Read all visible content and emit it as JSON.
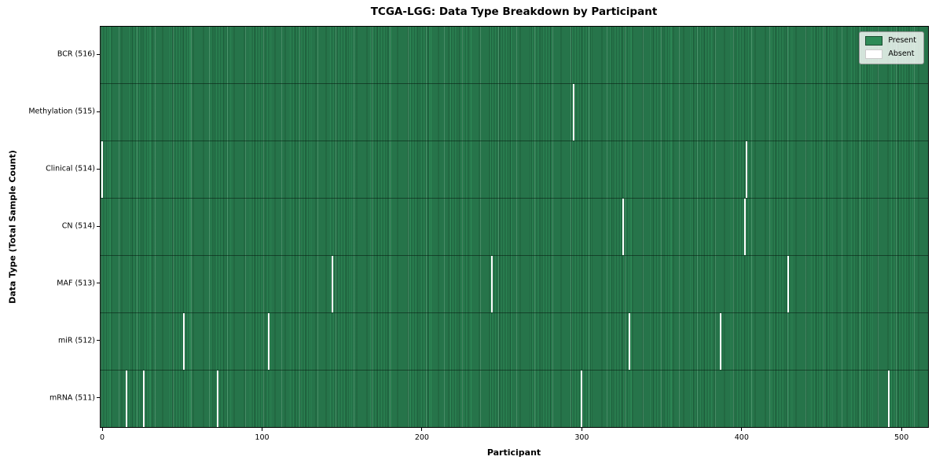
{
  "chart_data": {
    "type": "heatmap",
    "title": "TCGA-LGG: Data Type Breakdown by Participant",
    "xlabel": "Participant",
    "ylabel": "Data Type (Total Sample Count)",
    "x_ticks": [
      0,
      100,
      200,
      300,
      400,
      500
    ],
    "x_range": [
      -1,
      516.6
    ],
    "n_participants": 516,
    "grid": false,
    "legend": {
      "position": "upper right",
      "items": [
        {
          "label": "Present",
          "color": "#2e8b57"
        },
        {
          "label": "Absent",
          "color": "#ffffff"
        }
      ]
    },
    "rows": [
      {
        "label": "BCR (516)",
        "total": 516,
        "absent_participants": []
      },
      {
        "label": "Methylation (515)",
        "total": 515,
        "absent_participants": [
          295
        ]
      },
      {
        "label": "Clinical (514)",
        "total": 514,
        "absent_participants": [
          0,
          403
        ]
      },
      {
        "label": "CN (514)",
        "total": 514,
        "absent_participants": [
          326,
          402
        ]
      },
      {
        "label": "MAF (513)",
        "total": 513,
        "absent_participants": [
          144,
          244,
          429
        ]
      },
      {
        "label": "miR (512)",
        "total": 512,
        "absent_participants": [
          51,
          104,
          330,
          387
        ]
      },
      {
        "label": "mRNA (511)",
        "total": 511,
        "absent_participants": [
          15,
          26,
          72,
          300,
          492
        ]
      }
    ],
    "colors": {
      "present": "#2e8b57",
      "present_edge": "#1d5e3c",
      "absent": "#ffffff"
    }
  }
}
